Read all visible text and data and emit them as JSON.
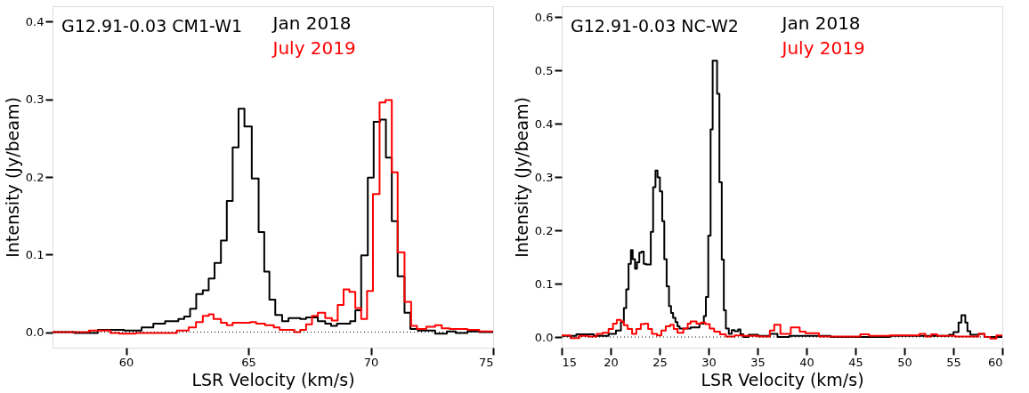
{
  "chart_data": [
    {
      "type": "step",
      "title": "G12.91-0.03 CM1-W1",
      "xlabel": "LSR Velocity (km/s)",
      "ylabel": "Intensity (Jy/beam)",
      "xlim": [
        57,
        75
      ],
      "ylim": [
        -0.02,
        0.42
      ],
      "xticks": [
        60,
        65,
        70,
        75
      ],
      "yticks": [
        {
          "value": 0,
          "label": "0.0"
        },
        0.1,
        0.2,
        0.3,
        0.4
      ],
      "legend": "top",
      "ref_lines": [
        {
          "axis": "y",
          "value": 0,
          "line_style": "dotted",
          "color": "#000000"
        }
      ],
      "series": [
        {
          "name": "Jan 2018",
          "color": "#000000",
          "x": [
            57.0,
            57.89,
            58.85,
            59.92,
            60.64,
            61.12,
            61.6,
            62.14,
            62.38,
            62.62,
            62.87,
            63.14,
            63.38,
            63.62,
            63.88,
            64.12,
            64.36,
            64.6,
            64.84,
            65.14,
            65.42,
            65.65,
            65.86,
            66.1,
            66.38,
            66.64,
            67.12,
            67.36,
            67.84,
            68.14,
            68.38,
            68.62,
            69.16,
            69.37,
            69.61,
            69.88,
            70.12,
            70.38,
            70.62,
            70.86,
            71.1,
            71.38,
            71.62,
            71.92,
            72.63,
            73.11,
            73.47,
            73.95,
            74.43,
            75.0
          ],
          "values": [
            0.0,
            -0.001,
            0.003,
            0.002,
            0.006,
            0.011,
            0.014,
            0.017,
            0.02,
            0.03,
            0.049,
            0.054,
            0.069,
            0.089,
            0.118,
            0.169,
            0.238,
            0.288,
            0.265,
            0.198,
            0.129,
            0.078,
            0.042,
            0.022,
            0.014,
            0.018,
            0.017,
            0.019,
            0.014,
            0.011,
            0.008,
            0.011,
            0.014,
            0.028,
            0.099,
            0.199,
            0.271,
            0.274,
            0.225,
            0.143,
            0.072,
            0.025,
            0.004,
            0.002,
            -0.002,
            0.001,
            -0.001,
            0.001,
            0.0,
            0.0
          ]
        },
        {
          "name": "July 2019",
          "color": "#ff0000",
          "x": [
            57.0,
            58.49,
            59.37,
            59.73,
            60.4,
            61.12,
            62.08,
            62.56,
            62.86,
            63.14,
            63.38,
            63.58,
            63.88,
            64.12,
            64.36,
            65.08,
            65.32,
            65.68,
            66.04,
            66.28,
            66.88,
            67.12,
            67.36,
            67.6,
            67.84,
            68.14,
            68.41,
            68.65,
            68.89,
            69.13,
            69.37,
            69.61,
            69.85,
            70.09,
            70.36,
            70.6,
            70.86,
            71.1,
            71.38,
            71.65,
            71.89,
            72.27,
            72.63,
            72.9,
            73.23,
            73.95,
            74.43,
            75.0
          ],
          "values": [
            0.0,
            0.002,
            -0.001,
            -0.002,
            -0.001,
            -0.001,
            0.002,
            0.006,
            0.013,
            0.021,
            0.023,
            0.017,
            0.012,
            0.009,
            0.012,
            0.013,
            0.011,
            0.009,
            0.006,
            0.003,
            0.0,
            0.003,
            0.01,
            0.021,
            0.025,
            0.018,
            0.015,
            0.035,
            0.055,
            0.052,
            0.031,
            0.017,
            0.053,
            0.178,
            0.296,
            0.299,
            0.206,
            0.103,
            0.039,
            0.008,
            0.004,
            0.007,
            0.009,
            0.005,
            0.004,
            0.003,
            0.001,
            0.001
          ]
        }
      ]
    },
    {
      "type": "step",
      "title": "G12.91-0.03 NC-W2",
      "xlabel": "LSR Velocity (km/s)",
      "ylabel": "Intensity (Jy/beam)",
      "xlim": [
        15,
        60
      ],
      "ylim": [
        -0.02,
        0.62
      ],
      "xticks": [
        15,
        20,
        25,
        30,
        35,
        40,
        45,
        50,
        55,
        60
      ],
      "yticks": [
        {
          "value": 0,
          "label": "0.0"
        },
        0.1,
        0.2,
        0.3,
        0.4,
        0.5,
        0.6
      ],
      "legend": "top",
      "ref_lines": [
        {
          "axis": "y",
          "value": 0,
          "line_style": "dotted",
          "color": "#000000"
        }
      ],
      "series": [
        {
          "name": "Jan 2018",
          "color": "#000000",
          "x": [
            15.0,
            16.5,
            18.29,
            19.79,
            20.54,
            21.05,
            21.35,
            21.59,
            21.83,
            22.07,
            22.25,
            22.49,
            22.69,
            22.93,
            23.14,
            23.38,
            23.62,
            24.1,
            24.34,
            24.58,
            24.79,
            25.03,
            25.27,
            25.48,
            25.72,
            25.96,
            26.17,
            26.38,
            26.62,
            26.83,
            27.04,
            28.17,
            29.07,
            29.52,
            29.73,
            29.97,
            30.21,
            30.42,
            30.87,
            31.11,
            31.35,
            31.56,
            31.77,
            32.07,
            32.37,
            32.66,
            33.02,
            33.26,
            33.56,
            34.1,
            35.06,
            36.26,
            37.04,
            38.25,
            40.06,
            42.48,
            48.52,
            54.56,
            55.02,
            55.53,
            55.83,
            56.22,
            56.44,
            56.74,
            57.58,
            58.19,
            60.0
          ],
          "values": [
            0.002,
            0.005,
            0.002,
            0.006,
            0.012,
            0.028,
            0.054,
            0.089,
            0.137,
            0.163,
            0.146,
            0.128,
            0.14,
            0.158,
            0.16,
            0.137,
            0.136,
            0.197,
            0.281,
            0.312,
            0.299,
            0.273,
            0.217,
            0.146,
            0.095,
            0.058,
            0.045,
            0.036,
            0.028,
            0.02,
            0.016,
            0.018,
            0.025,
            0.039,
            0.075,
            0.19,
            0.389,
            0.518,
            0.456,
            0.29,
            0.145,
            0.05,
            0.016,
            0.006,
            0.013,
            0.011,
            0.014,
            0.005,
            0.0,
            0.004,
            0.002,
            0.006,
            0.0,
            0.002,
            0.002,
            0.0,
            0.002,
            0.004,
            0.009,
            0.027,
            0.041,
            0.027,
            0.011,
            0.004,
            0.006,
            0.0,
            0.0
          ]
        },
        {
          "name": "July 2019",
          "color": "#ff0000",
          "x": [
            15.0,
            15.9,
            16.8,
            17.69,
            18.59,
            19.19,
            19.79,
            20.24,
            20.63,
            21.05,
            21.35,
            21.74,
            22.19,
            22.63,
            23.08,
            23.44,
            23.83,
            24.22,
            24.73,
            25.18,
            25.63,
            26.08,
            26.44,
            26.83,
            27.43,
            27.87,
            28.17,
            28.77,
            29.22,
            29.67,
            30.12,
            30.57,
            31.17,
            31.77,
            32.66,
            33.56,
            35.06,
            36.26,
            36.71,
            37.34,
            38.4,
            39.31,
            39.91,
            41.27,
            45.5,
            46.4,
            48.52,
            51.54,
            52.15,
            52.75,
            53.35,
            55.17,
            57.58,
            58.19,
            58.79,
            59.4,
            60.0
          ],
          "values": [
            0.003,
            -0.002,
            0.002,
            0.001,
            0.006,
            0.008,
            0.015,
            0.025,
            0.032,
            0.029,
            0.022,
            0.015,
            0.006,
            0.015,
            0.024,
            0.025,
            0.015,
            0.006,
            0.003,
            0.012,
            0.02,
            0.023,
            0.015,
            0.008,
            0.016,
            0.025,
            0.029,
            0.025,
            0.027,
            0.024,
            0.016,
            0.01,
            0.005,
            0.001,
            0.003,
            0.002,
            0.001,
            0.012,
            0.023,
            0.006,
            0.018,
            0.01,
            0.007,
            0.001,
            0.005,
            0.002,
            0.003,
            0.006,
            0.001,
            0.005,
            0.002,
            0.001,
            0.006,
            0.0,
            -0.003,
            0.003,
            0.003
          ]
        }
      ]
    }
  ]
}
